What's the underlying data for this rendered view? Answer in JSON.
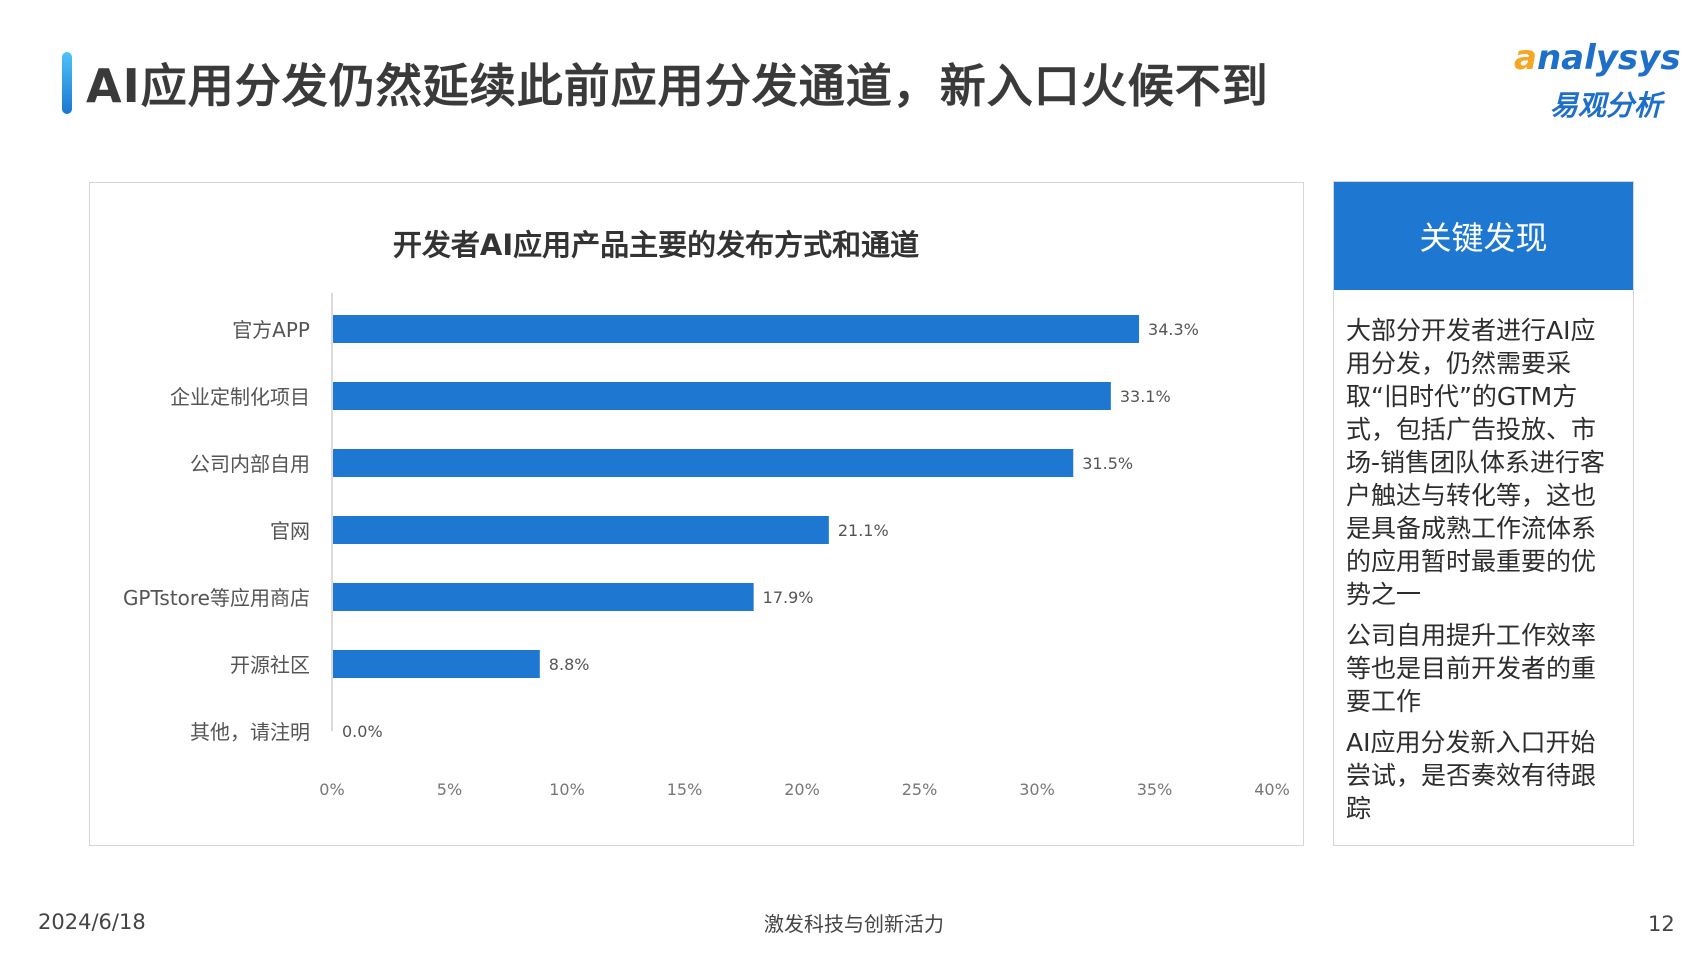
{
  "header": {
    "title": "AI应用分发仍然延续此前应用分发通道，新入口火候不到",
    "logo_en": "nalysys",
    "logo_en_first": "a",
    "logo_cn": "易观分析"
  },
  "colors": {
    "accent": "#1e78d2",
    "bar": "#1e78d2",
    "logo_orange": "#f5a623"
  },
  "chart_data": {
    "type": "bar",
    "orientation": "horizontal",
    "title": "开发者AI应用产品主要的发布方式和通道",
    "categories": [
      "官方APP",
      "企业定制化项目",
      "公司内部自用",
      "官网",
      "GPTstore等应用商店",
      "开源社区",
      "其他，请注明"
    ],
    "values": [
      34.3,
      33.1,
      31.5,
      21.1,
      17.9,
      8.8,
      0.0
    ],
    "value_labels": [
      "34.3%",
      "33.1%",
      "31.5%",
      "21.1%",
      "17.9%",
      "8.8%",
      "0.0%"
    ],
    "xlim": [
      0,
      40
    ],
    "xticks": [
      "0%",
      "5%",
      "10%",
      "15%",
      "20%",
      "25%",
      "30%",
      "35%",
      "40%"
    ],
    "grid": false,
    "legend": "none"
  },
  "findings": {
    "header": "关键发现",
    "items": [
      "大部分开发者进行AI应用分发，仍然需要采取“旧时代”的GTM方式，包括广告投放、市场-销售团队体系进行客户触达与转化等，这也是具备成熟工作流体系的应用暂时最重要的优势之一",
      "公司自用提升工作效率等也是目前开发者的重要工作",
      "AI应用分发新入口开始尝试，是否奏效有待跟踪"
    ]
  },
  "footer": {
    "date": "2024/6/18",
    "slogan": "激发科技与创新活力",
    "page": "12"
  }
}
